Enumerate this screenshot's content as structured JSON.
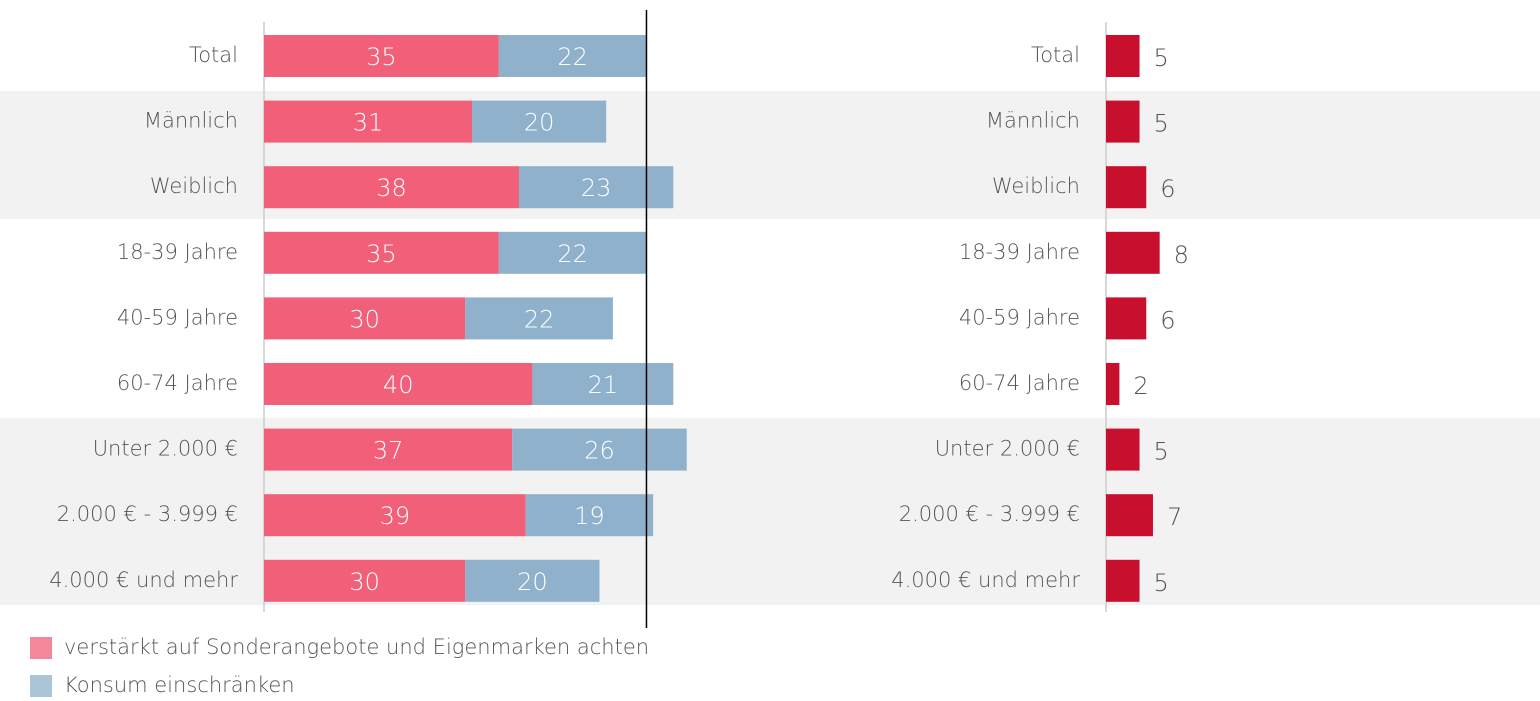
{
  "chart_data": [
    {
      "type": "bar",
      "orientation": "horizontal",
      "stacked": true,
      "categories": [
        "Total",
        "Männlich",
        "Weiblich",
        "18-39 Jahre",
        "40-59 Jahre",
        "60-74 Jahre",
        "Unter 2.000 €",
        "2.000 € - 3.999 €",
        "4.000 € und mehr"
      ],
      "series": [
        {
          "name": "verstärkt auf Sonderangebote und Eigenmarken achten",
          "color": "#f25f78",
          "values": [
            35,
            31,
            38,
            35,
            30,
            40,
            37,
            39,
            30
          ]
        },
        {
          "name": "Konsum einschränken",
          "color": "#8fb1cb",
          "values": [
            22,
            20,
            23,
            22,
            22,
            21,
            26,
            19,
            20
          ]
        }
      ],
      "xlim": [
        0,
        100
      ],
      "legend": "bottom-left"
    },
    {
      "type": "bar",
      "orientation": "horizontal",
      "categories": [
        "Total",
        "Männlich",
        "Weiblich",
        "18-39 Jahre",
        "40-59 Jahre",
        "60-74 Jahre",
        "Unter 2.000 €",
        "2.000 € - 3.999 €",
        "4.000 € und mehr"
      ],
      "values": [
        5,
        5,
        6,
        8,
        6,
        2,
        5,
        7,
        5
      ],
      "color": "#c8102e",
      "xlim": [
        0,
        100
      ]
    }
  ]
}
